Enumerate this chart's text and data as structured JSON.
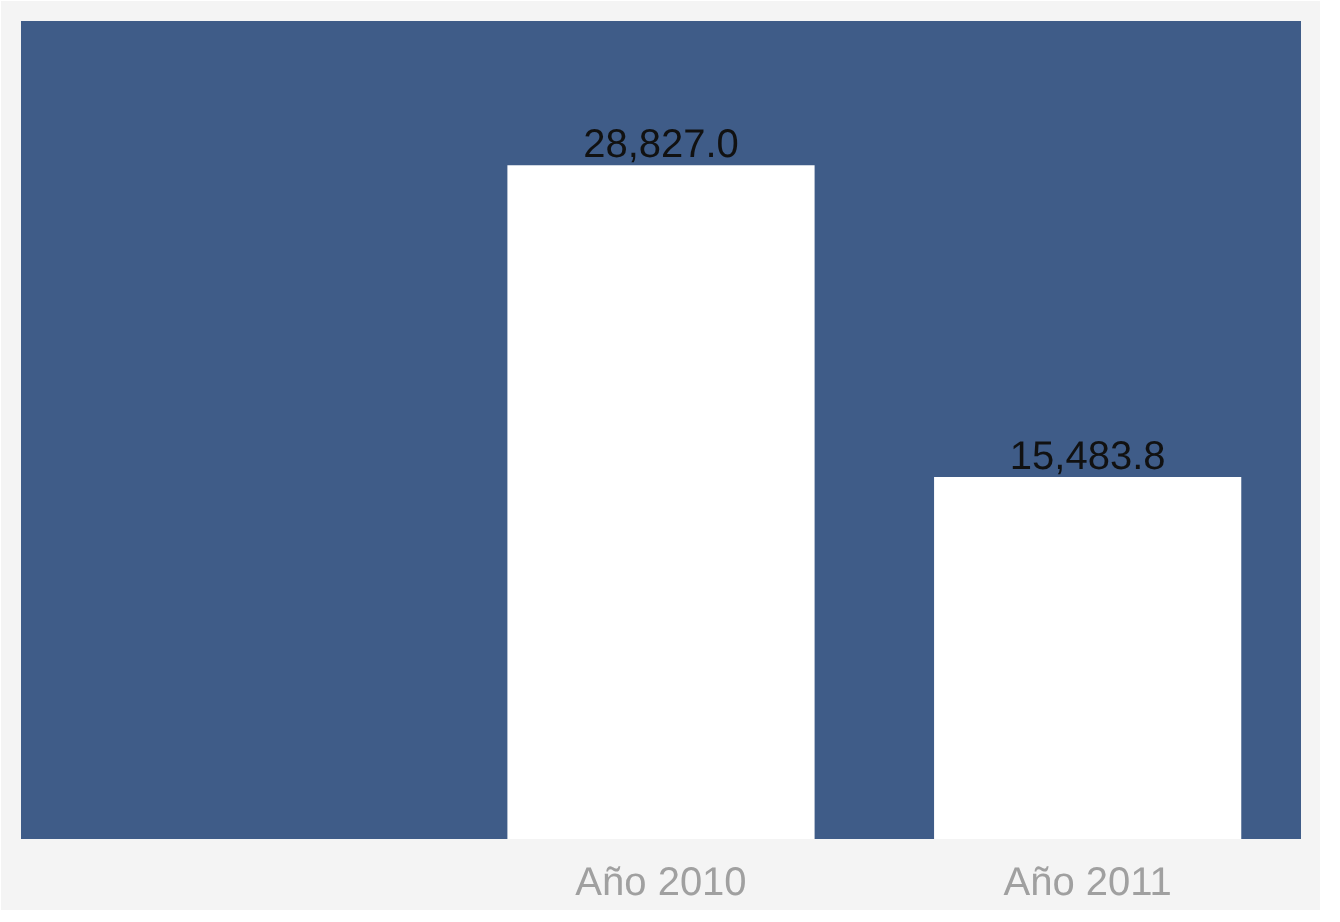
{
  "chart_data": {
    "type": "bar",
    "categories": [
      null,
      "Año 2010",
      "Año 2011"
    ],
    "values": [
      null,
      28827.0,
      15483.8
    ],
    "value_labels": [
      null,
      "28,827.0",
      "15,483.8"
    ],
    "color": "#ffffff",
    "ylim": [
      0,
      35000
    ],
    "tick_labels": "x",
    "grid": false
  }
}
